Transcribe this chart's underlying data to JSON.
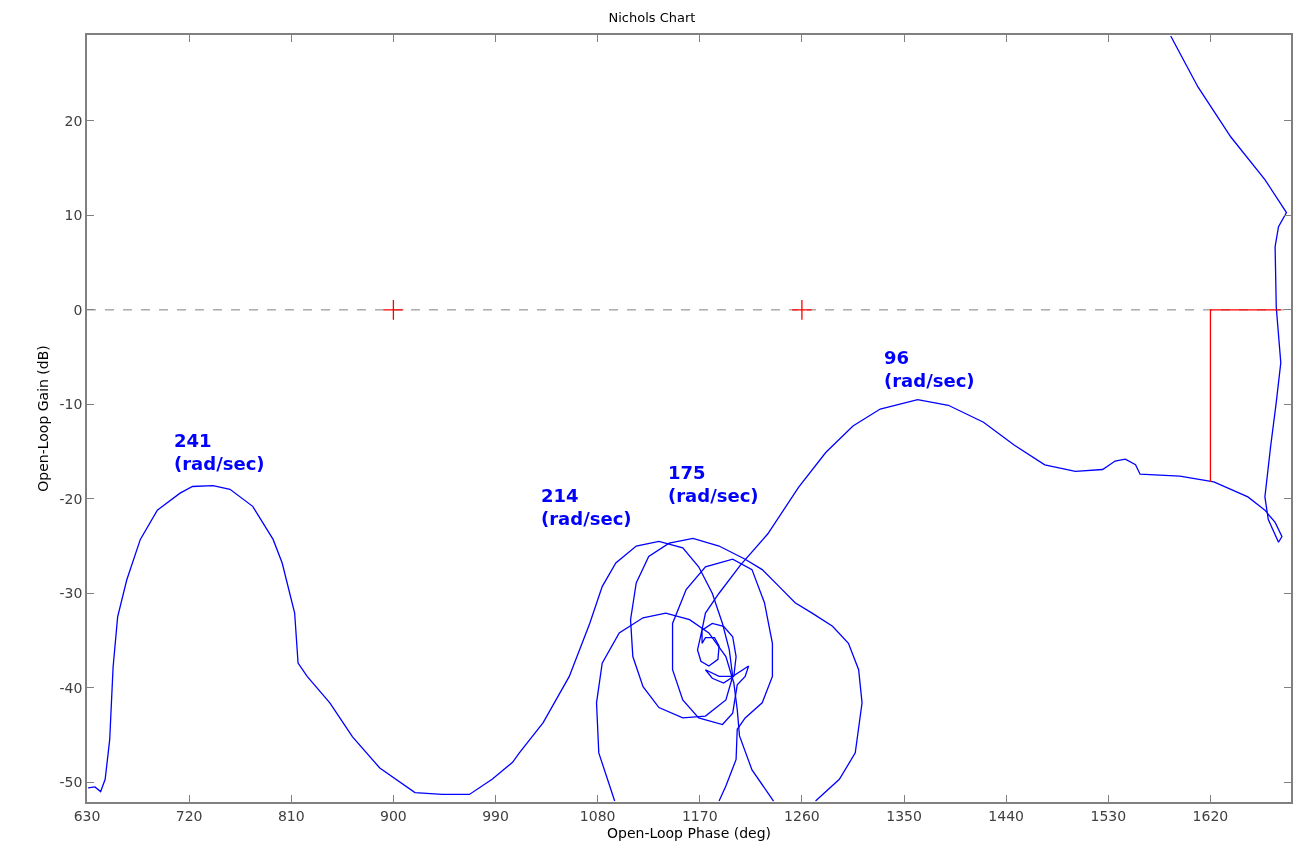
{
  "chart_data": {
    "type": "line",
    "title": "Nichols Chart",
    "xlabel": "Open-Loop Phase (deg)",
    "ylabel": "Open-Loop Gain (dB)",
    "xlim": [
      630,
      1691
    ],
    "ylim": [
      -52.1,
      29.1
    ],
    "xticks": [
      630,
      720,
      810,
      900,
      990,
      1080,
      1170,
      1260,
      1350,
      1440,
      1530,
      1620
    ],
    "yticks": [
      -50,
      -40,
      -30,
      -20,
      -10,
      0,
      10,
      20
    ],
    "grid": false,
    "marker": "none",
    "line_style": "solid",
    "ref_lines": [
      {
        "axis": "y",
        "value": 0,
        "color": "#808080",
        "line_style": "dashed"
      }
    ],
    "series": [
      {
        "color": "#0000ff",
        "x": [
          1585,
          1609,
          1638,
          1668,
          1687,
          1680,
          1677,
          1678,
          1682,
          1678,
          1673,
          1668,
          1671,
          1680,
          1683,
          1677,
          1668,
          1653,
          1623,
          1593,
          1558,
          1554,
          1545,
          1536,
          1525,
          1501,
          1474,
          1447,
          1420,
          1389,
          1362,
          1329,
          1305,
          1281,
          1257,
          1230,
          1206,
          1187,
          1175,
          1171,
          1168,
          1171,
          1178,
          1186,
          1187,
          1183,
          1175,
          1172,
          1172,
          1181,
          1191,
          1199,
          1202,
          1200,
          1191,
          1181,
          1175,
          1187,
          1199,
          1208,
          1213,
          1210,
          1203,
          1199,
          1190,
          1169,
          1155,
          1146,
          1146,
          1158,
          1175,
          1199,
          1216,
          1227,
          1234,
          1234,
          1225,
          1210,
          1203,
          1202,
          1193,
          1187,
          null,
          1095,
          1081,
          1079,
          1084,
          1099,
          1120,
          1140,
          1161,
          1178,
          1193,
          1200,
          1203,
          1205,
          1216,
          1235,
          null,
          1272,
          1293,
          1307,
          1313,
          1310,
          1301,
          1287,
          1269,
          1254,
          1240,
          1225,
          1210,
          1187,
          1164,
          1143,
          1125,
          1114,
          1109,
          1111,
          1120,
          1134,
          1155,
          1175,
          1193,
          1199,
          1196,
          1190,
          1181,
          1169,
          1155,
          1134,
          1114,
          1096,
          1084,
          1073,
          1055,
          1032,
          1011,
          1005,
          987,
          967,
          943,
          919,
          888,
          864,
          844,
          824,
          816,
          813,
          802,
          794,
          776,
          756,
          741,
          723,
          712,
          692,
          677,
          665,
          657,
          653,
          650,
          646,
          642,
          637,
          631
        ],
        "values": [
          29.0,
          23.6,
          18.3,
          13.8,
          10.3,
          8.8,
          6.7,
          0.3,
          -5.6,
          -9.8,
          -14.5,
          -19.8,
          -22.2,
          -24.6,
          -24.0,
          -22.5,
          -21.2,
          -19.8,
          -18.2,
          -17.6,
          -17.4,
          -16.4,
          -15.8,
          -16.0,
          -16.9,
          -17.1,
          -16.4,
          -14.3,
          -11.9,
          -10.1,
          -9.5,
          -10.5,
          -12.3,
          -15.1,
          -18.8,
          -23.7,
          -27.0,
          -30.0,
          -32.1,
          -34.4,
          -36.0,
          -37.2,
          -37.7,
          -37.0,
          -35.6,
          -34.7,
          -34.7,
          -35.3,
          -33.9,
          -33.2,
          -33.5,
          -34.6,
          -36.7,
          -38.8,
          -39.5,
          -39.0,
          -38.1,
          -38.8,
          -38.8,
          -38.1,
          -37.7,
          -38.8,
          -39.7,
          -42.7,
          -43.9,
          -43.2,
          -41.3,
          -38.1,
          -33.2,
          -29.6,
          -27.2,
          -26.4,
          -27.5,
          -31.0,
          -35.3,
          -38.8,
          -41.6,
          -43.2,
          -44.4,
          -47.6,
          -50.4,
          -52.0,
          null,
          -52.0,
          -46.9,
          -41.6,
          -37.4,
          -34.2,
          -32.6,
          -32.1,
          -32.8,
          -34.2,
          -36.7,
          -39.5,
          -42.3,
          -45.1,
          -48.7,
          -52.0,
          null,
          -52.0,
          -49.7,
          -46.9,
          -41.6,
          -38.1,
          -35.3,
          -33.5,
          -32.1,
          -31.0,
          -29.3,
          -27.5,
          -26.4,
          -25.0,
          -24.2,
          -24.7,
          -26.1,
          -28.9,
          -32.8,
          -36.7,
          -39.9,
          -42.1,
          -43.2,
          -43.0,
          -41.3,
          -38.8,
          -36.0,
          -33.2,
          -30.0,
          -27.2,
          -25.2,
          -24.5,
          -25.0,
          -26.8,
          -29.3,
          -33.2,
          -38.8,
          -43.7,
          -46.9,
          -47.9,
          -49.7,
          -51.3,
          -51.3,
          -51.1,
          -48.5,
          -45.2,
          -41.6,
          -38.8,
          -37.4,
          -32.1,
          -26.8,
          -24.3,
          -20.8,
          -19.0,
          -18.6,
          -18.7,
          -19.4,
          -21.2,
          -24.3,
          -28.6,
          -32.5,
          -37.8,
          -45.5,
          -49.7,
          -51.0,
          -50.5,
          -50.6
        ]
      },
      {
        "type": "line",
        "color": "#ff0000",
        "x": [
          1620,
          1620,
          1682
        ],
        "values": [
          -18.2,
          0,
          0
        ]
      },
      {
        "type": "scatter",
        "color": "#ff0000",
        "marker": "cross",
        "x": [
          900,
          1260
        ],
        "values": [
          0,
          0
        ]
      }
    ],
    "annotations": [
      "241\n(rad/sec)",
      "214\n(rad/sec)",
      "175\n(rad/sec)",
      "96\n(rad/sec)"
    ]
  }
}
